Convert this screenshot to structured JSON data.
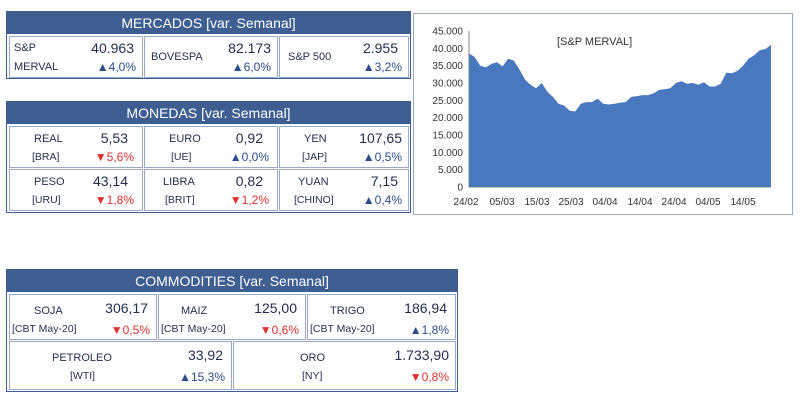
{
  "mercados": {
    "title": "MERCADOS [var. Semanal]",
    "items": [
      {
        "name1": "S&P",
        "name2": "MERVAL",
        "value": "40.963",
        "arrow": "▲",
        "change": "4,0%",
        "dir": "up"
      },
      {
        "name1": "BOVESPA",
        "name2": "",
        "value": "82.173",
        "arrow": "▲",
        "change": "6,0%",
        "dir": "up"
      },
      {
        "name1": "S&P 500",
        "name2": "",
        "value": "2.955",
        "arrow": "▲",
        "change": "3,2%",
        "dir": "up"
      }
    ]
  },
  "monedas": {
    "title": "MONEDAS  [var. Semanal]",
    "items": [
      {
        "name": "REAL",
        "code": "[BRA]",
        "value": "5,53",
        "arrow": "▼",
        "change": "5,6%",
        "dir": "dn"
      },
      {
        "name": "EURO",
        "code": "[UE]",
        "value": "0,92",
        "arrow": "▲",
        "change": "0,0%",
        "dir": "up"
      },
      {
        "name": "YEN",
        "code": "[JAP]",
        "value": "107,65",
        "arrow": "▲",
        "change": "0,5%",
        "dir": "up"
      },
      {
        "name": "PESO",
        "code": "[URU]",
        "value": "43,14",
        "arrow": "▼",
        "change": "1,8%",
        "dir": "dn"
      },
      {
        "name": "LIBRA",
        "code": "[BRIT]",
        "value": "0,82",
        "arrow": "▼",
        "change": "1,2%",
        "dir": "dn"
      },
      {
        "name": "YUAN",
        "code": "[CHINO]",
        "value": "7,15",
        "arrow": "▲",
        "change": "0,4%",
        "dir": "up"
      }
    ]
  },
  "commodities": {
    "title": "COMMODITIES  [var. Semanal]",
    "items": [
      {
        "name": "SOJA",
        "code": "[CBT May-20]",
        "value": "306,17",
        "arrow": "▼",
        "change": "0,5%",
        "dir": "dn"
      },
      {
        "name": "MAIZ",
        "code": "[CBT May-20]",
        "value": "125,00",
        "arrow": "▼",
        "change": "0,6%",
        "dir": "dn"
      },
      {
        "name": "TRIGO",
        "code": "[CBT May-20]",
        "value": "186,94",
        "arrow": "▲",
        "change": "1,8%",
        "dir": "up"
      },
      {
        "name": "PETROLEO",
        "code": "[WTI]",
        "value": "33,92",
        "arrow": "▲",
        "change": "15,3%",
        "dir": "up"
      },
      {
        "name": "ORO",
        "code": "[NY]",
        "value": "1.733,90",
        "arrow": "▼",
        "change": "0,8%",
        "dir": "dn"
      }
    ]
  },
  "chart_data": {
    "type": "area",
    "title": "[S&P MERVAL]",
    "xlabel": "",
    "ylabel": "",
    "ylim": [
      0,
      45000
    ],
    "yticks": [
      "0",
      "5.000",
      "10.000",
      "15.000",
      "20.000",
      "25.000",
      "30.000",
      "35.000",
      "40.000",
      "45.000"
    ],
    "xticks": [
      "24/02",
      "05/03",
      "15/03",
      "25/03",
      "04/04",
      "14/04",
      "24/04",
      "04/05",
      "14/05"
    ],
    "color": "#4a78be",
    "series": [
      {
        "name": "S&P MERVAL",
        "x": [
          0,
          1,
          2,
          3,
          4,
          5,
          6,
          7,
          8,
          9,
          10,
          11,
          12,
          13,
          14,
          15,
          16,
          17,
          18,
          19,
          20,
          21,
          22,
          23,
          24,
          25,
          26,
          27,
          28,
          29,
          30,
          31,
          32,
          33,
          34,
          35,
          36,
          37,
          38,
          39,
          40,
          41,
          42,
          43,
          44,
          45,
          46,
          47,
          48,
          49,
          50,
          51,
          52,
          53,
          54
        ],
        "values": [
          38500,
          37500,
          35000,
          34500,
          35500,
          36000,
          34800,
          37000,
          36500,
          34000,
          31000,
          29500,
          28500,
          30000,
          27500,
          26000,
          24000,
          23500,
          22000,
          21800,
          24000,
          24500,
          24500,
          25500,
          24000,
          23800,
          24000,
          24300,
          24500,
          26000,
          26200,
          26500,
          26500,
          27000,
          28000,
          28200,
          28500,
          30000,
          30500,
          29800,
          30000,
          29500,
          30200,
          29000,
          29000,
          29800,
          33000,
          32800,
          33500,
          35000,
          37000,
          38000,
          39500,
          39800,
          41000
        ]
      }
    ]
  }
}
